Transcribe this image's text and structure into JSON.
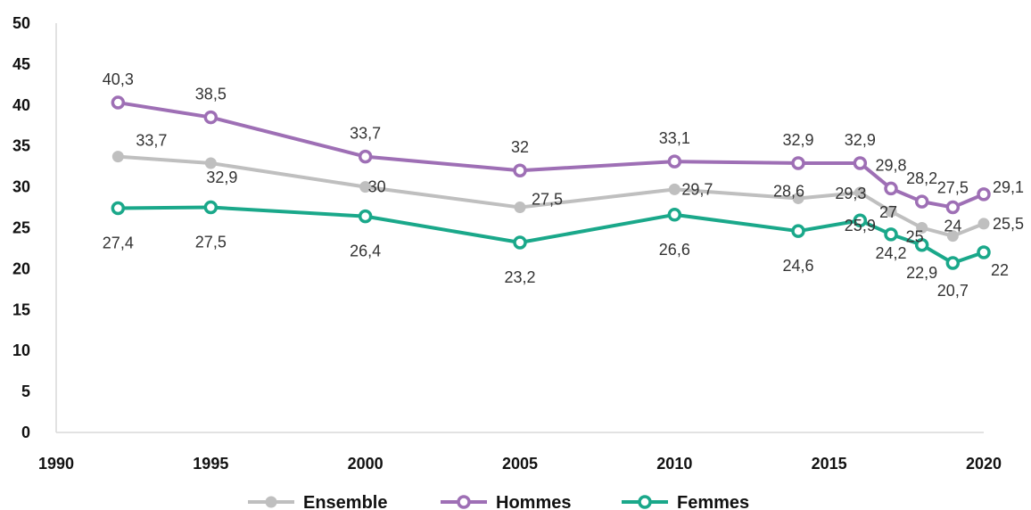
{
  "chart_data": {
    "type": "line",
    "x": [
      1992,
      1995,
      2000,
      2005,
      2010,
      2014,
      2016,
      2017,
      2018,
      2019,
      2020
    ],
    "xlim": [
      1990,
      2020
    ],
    "ylim": [
      0,
      50
    ],
    "xticks": [
      "1990",
      "1995",
      "2000",
      "2005",
      "2010",
      "2015",
      "2020"
    ],
    "yticks": [
      "0",
      "5",
      "10",
      "15",
      "20",
      "25",
      "30",
      "35",
      "40",
      "45",
      "50"
    ],
    "grid": false,
    "legend_position": "bottom",
    "series": [
      {
        "name": "Ensemble",
        "color": "#bfbfbf",
        "marker": "filled-circle",
        "values": [
          33.7,
          32.9,
          30,
          27.5,
          29.7,
          28.6,
          29.3,
          27,
          25,
          24,
          25.5
        ],
        "labels": [
          "33,7",
          "32,9",
          "30",
          "27,5",
          "29,7",
          "28,6",
          "29,3",
          "27",
          "25",
          "24",
          "25,5"
        ]
      },
      {
        "name": "Hommes",
        "color": "#9e6fb5",
        "marker": "hollow-circle",
        "values": [
          40.3,
          38.5,
          33.7,
          32,
          33.1,
          32.9,
          32.9,
          29.8,
          28.2,
          27.5,
          29.1
        ],
        "labels": [
          "40,3",
          "38,5",
          "33,7",
          "32",
          "33,1",
          "32,9",
          "32,9",
          "29,8",
          "28,2",
          "27,5",
          "29,1"
        ]
      },
      {
        "name": "Femmes",
        "color": "#1aa88a",
        "marker": "hollow-circle",
        "values": [
          27.4,
          27.5,
          26.4,
          23.2,
          26.6,
          24.6,
          25.9,
          24.2,
          22.9,
          20.7,
          22
        ],
        "labels": [
          "27,4",
          "27,5",
          "26,4",
          "23,2",
          "26,6",
          "24,6",
          "25,9",
          "24,2",
          "22,9",
          "20,7",
          "22"
        ]
      }
    ]
  }
}
